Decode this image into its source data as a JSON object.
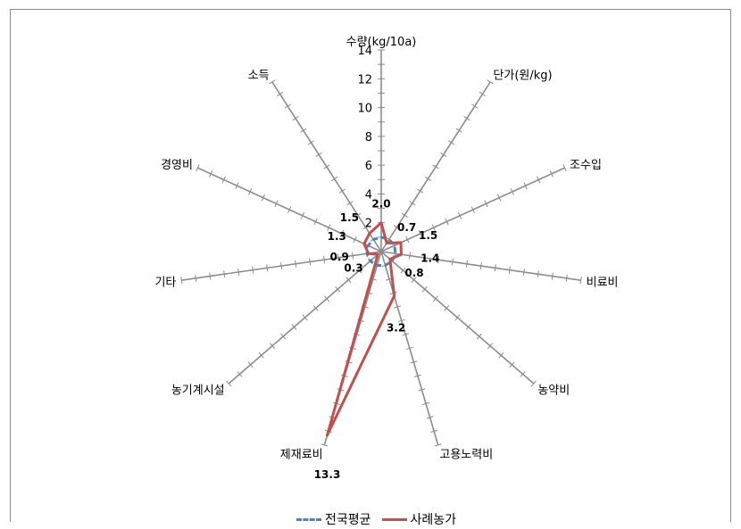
{
  "chart_data": {
    "type": "radar",
    "categories": [
      "수량(kg/10a)",
      "단가(원/kg)",
      "조수입",
      "비료비",
      "농약비",
      "고용노력비",
      "제재료비",
      "농기계시설",
      "기타",
      "경영비",
      "소득"
    ],
    "rlim": [
      0,
      14
    ],
    "ticks": [
      2,
      4,
      6,
      8,
      10,
      12,
      14
    ],
    "series": [
      {
        "name": "전국평균",
        "style": "dashed",
        "color": "#4f81bd",
        "values": [
          1,
          1,
          1,
          1,
          1,
          1,
          1,
          1,
          1,
          1,
          1
        ]
      },
      {
        "name": "사례농가",
        "style": "solid",
        "color": "#c0504d",
        "values": [
          2.0,
          0.7,
          1.5,
          1.4,
          0.8,
          3.2,
          13.3,
          0.3,
          0.9,
          1.3,
          1.5
        ],
        "data_labels": [
          "2.0",
          "0.7",
          "1.5",
          "1.4",
          "0.8",
          "3.2",
          "13.3",
          "0.3",
          "0.9",
          "1.3",
          "1.5"
        ]
      }
    ],
    "legend_position": "bottom"
  }
}
